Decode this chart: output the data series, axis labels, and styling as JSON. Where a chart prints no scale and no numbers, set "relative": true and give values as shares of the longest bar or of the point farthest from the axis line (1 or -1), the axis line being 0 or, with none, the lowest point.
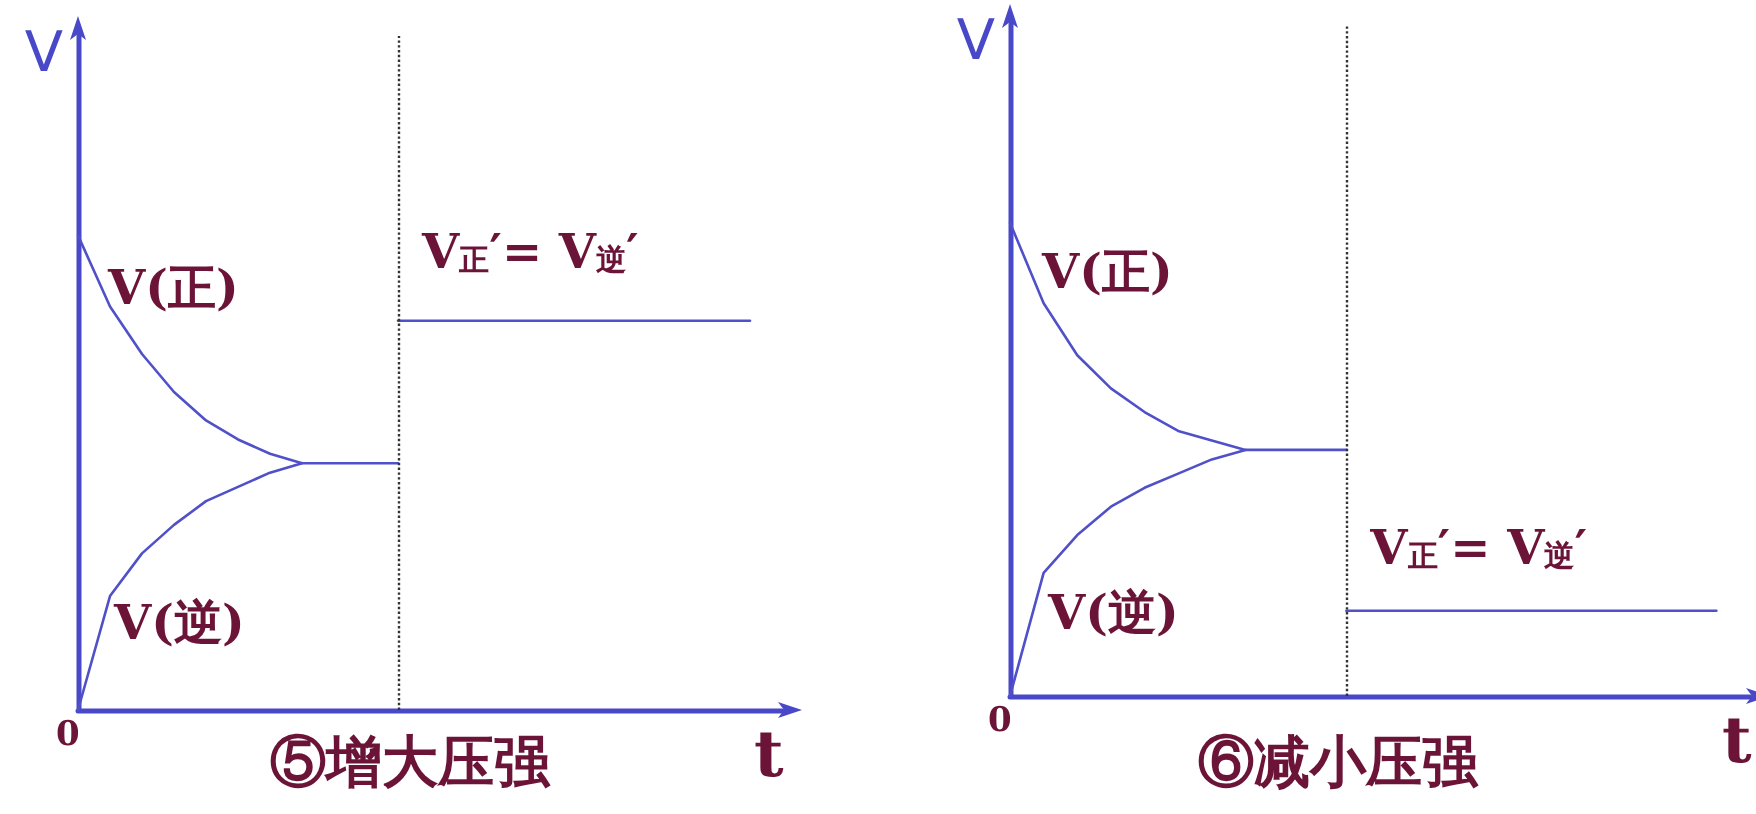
{
  "chart_data": [
    {
      "type": "line",
      "title": "⑤增大压强",
      "xlabel": "t",
      "ylabel": "V",
      "annotations": [
        "0"
      ],
      "relative": true,
      "legend": false,
      "marker": "none",
      "categories": [
        null,
        null,
        null,
        null,
        null,
        null,
        null,
        null,
        null,
        null,
        null,
        null,
        null,
        null,
        null,
        null,
        null,
        null,
        null,
        null,
        null,
        null,
        null
      ],
      "series": [
        {
          "name": "V(正)",
          "color": "#5050c8",
          "values": [
            1,
            0.85,
            0.75,
            0.67,
            0.61,
            0.57,
            0.54,
            0.52,
            0.52,
            0.52,
            0.52,
            null,
            null,
            null,
            null,
            null,
            null,
            null,
            null,
            null,
            null,
            null,
            null
          ]
        },
        {
          "name": "V(逆)",
          "color": "#5050c8",
          "values": [
            0,
            0.24,
            0.33,
            0.39,
            0.44,
            0.47,
            0.5,
            0.52,
            null,
            null,
            null,
            null,
            null,
            null,
            null,
            null,
            null,
            null,
            null,
            null,
            null,
            null,
            null
          ]
        },
        {
          "name": "V$_{正}$′= V$_{逆}$′",
          "color": "#5050c8",
          "values": [
            null,
            null,
            null,
            null,
            null,
            null,
            null,
            null,
            null,
            null,
            0.82,
            0.82,
            0.82,
            0.82,
            0.82,
            0.82,
            0.82,
            0.82,
            0.82,
            0.82,
            0.82,
            0.82,
            null
          ]
        }
      ]
    },
    {
      "type": "line",
      "title": "⑥减小压强",
      "xlabel": "t",
      "ylabel": "V",
      "annotations": [
        "0"
      ],
      "relative": true,
      "legend": false,
      "marker": "none",
      "categories": [
        null,
        null,
        null,
        null,
        null,
        null,
        null,
        null,
        null,
        null,
        null,
        null,
        null,
        null,
        null,
        null,
        null,
        null,
        null,
        null,
        null,
        null,
        null
      ],
      "series": [
        {
          "name": "V(正)",
          "color": "#5050c8",
          "values": [
            1,
            0.83,
            0.72,
            0.65,
            0.6,
            0.56,
            0.54,
            0.52,
            0.52,
            0.52,
            0.52,
            null,
            null,
            null,
            null,
            null,
            null,
            null,
            null,
            null,
            null,
            null,
            null
          ]
        },
        {
          "name": "V(逆)",
          "color": "#5050c8",
          "values": [
            0,
            0.26,
            0.34,
            0.4,
            0.44,
            0.47,
            0.5,
            0.52,
            null,
            null,
            null,
            null,
            null,
            null,
            null,
            null,
            null,
            null,
            null,
            null,
            null,
            null,
            null
          ]
        },
        {
          "name": "V$_{正}$′= V$_{逆}$′",
          "color": "#5050c8",
          "values": [
            null,
            null,
            null,
            null,
            null,
            null,
            null,
            null,
            null,
            null,
            0.18,
            0.18,
            0.18,
            0.18,
            0.18,
            0.18,
            0.18,
            0.18,
            0.18,
            0.18,
            0.18,
            0.18,
            null
          ]
        }
      ]
    }
  ]
}
